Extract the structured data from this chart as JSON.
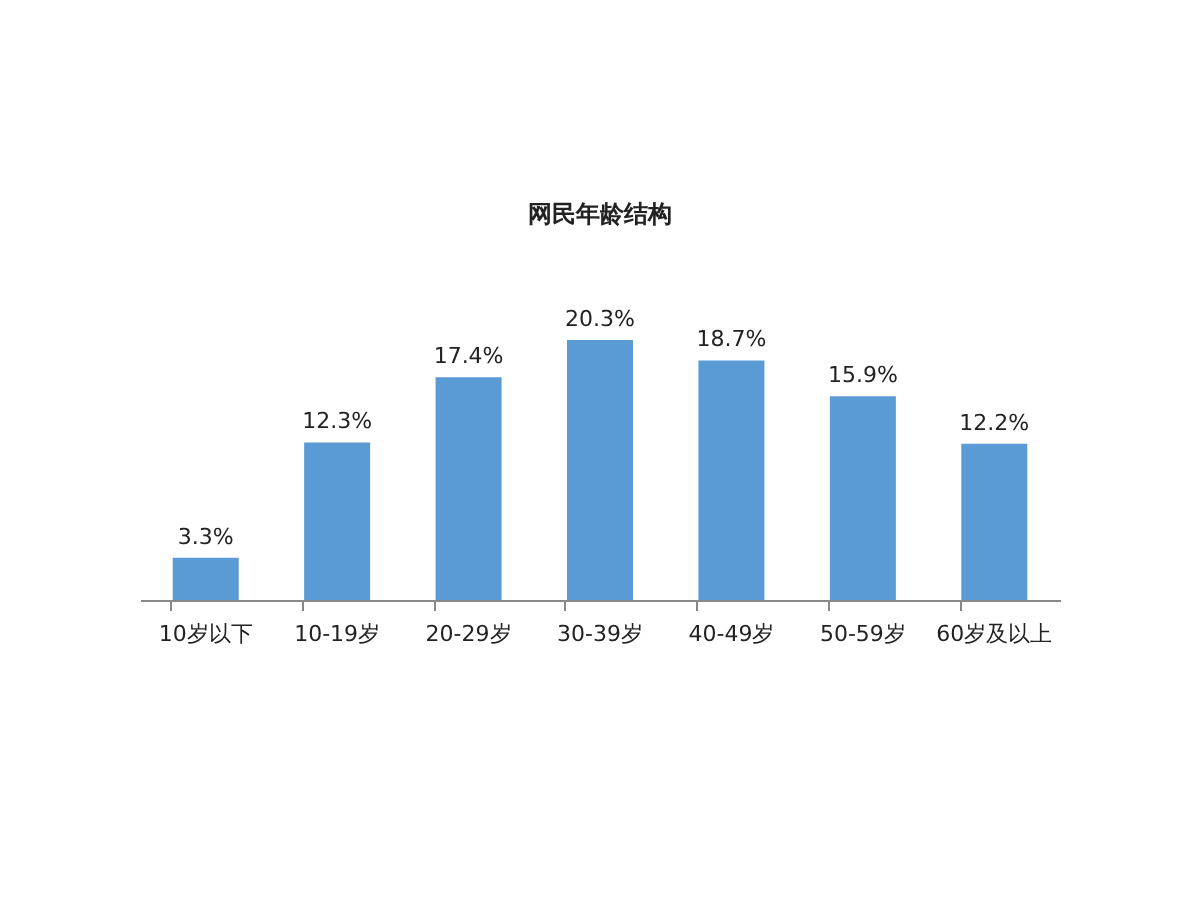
{
  "chart_data": {
    "type": "bar",
    "title": "网民年龄结构",
    "categories": [
      "10岁以下",
      "10-19岁",
      "20-29岁",
      "30-39岁",
      "40-49岁",
      "50-59岁",
      "60岁及以上"
    ],
    "values": [
      3.3,
      12.3,
      17.4,
      20.3,
      18.7,
      15.9,
      12.2
    ],
    "value_labels": [
      "3.3%",
      "12.3%",
      "17.4%",
      "20.3%",
      "18.7%",
      "15.9%",
      "12.2%"
    ],
    "color": "#5b9bd5"
  }
}
